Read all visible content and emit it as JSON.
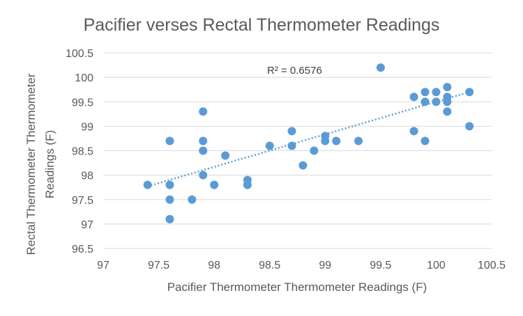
{
  "chart_data": {
    "type": "scatter",
    "title": "Pacifier verses Rectal Thermometer Readings",
    "xlabel": "Pacifier Thermometer Thermometer Readings (F)",
    "ylabel": "Rectal Thermometer Thermometer Readings (F)",
    "xlim": [
      97,
      100.5
    ],
    "ylim": [
      96.5,
      100.5
    ],
    "xticks": [
      "97",
      "97.5",
      "98",
      "98.5",
      "99",
      "99.5",
      "100",
      "100.5"
    ],
    "yticks": [
      "96.5",
      "97",
      "97.5",
      "98",
      "98.5",
      "99",
      "99.5",
      "100",
      "100.5"
    ],
    "grid": "horizontal",
    "annotation": "R² = 0.6576",
    "trendline": {
      "type": "linear",
      "x_start": 97.4,
      "y_start": 97.77,
      "x_end": 100.3,
      "y_end": 99.7
    },
    "series": [
      {
        "color": "#5b9bd5",
        "points": [
          {
            "x": 97.4,
            "y": 97.8
          },
          {
            "x": 97.6,
            "y": 98.7
          },
          {
            "x": 97.6,
            "y": 97.8
          },
          {
            "x": 97.6,
            "y": 97.5
          },
          {
            "x": 97.6,
            "y": 97.1
          },
          {
            "x": 97.8,
            "y": 97.5
          },
          {
            "x": 97.9,
            "y": 99.3
          },
          {
            "x": 97.9,
            "y": 98.7
          },
          {
            "x": 97.9,
            "y": 98.5
          },
          {
            "x": 97.9,
            "y": 98.0
          },
          {
            "x": 98.0,
            "y": 97.8
          },
          {
            "x": 98.1,
            "y": 98.4
          },
          {
            "x": 98.3,
            "y": 97.9
          },
          {
            "x": 98.3,
            "y": 97.8
          },
          {
            "x": 98.5,
            "y": 98.6
          },
          {
            "x": 98.7,
            "y": 98.9
          },
          {
            "x": 98.7,
            "y": 98.6
          },
          {
            "x": 98.8,
            "y": 98.2
          },
          {
            "x": 98.9,
            "y": 98.5
          },
          {
            "x": 99.0,
            "y": 98.8
          },
          {
            "x": 99.0,
            "y": 98.7
          },
          {
            "x": 99.1,
            "y": 98.7
          },
          {
            "x": 99.3,
            "y": 98.7
          },
          {
            "x": 99.5,
            "y": 100.2
          },
          {
            "x": 99.8,
            "y": 99.6
          },
          {
            "x": 99.8,
            "y": 98.9
          },
          {
            "x": 99.9,
            "y": 99.7
          },
          {
            "x": 99.9,
            "y": 99.5
          },
          {
            "x": 99.9,
            "y": 98.7
          },
          {
            "x": 100.0,
            "y": 99.7
          },
          {
            "x": 100.0,
            "y": 99.5
          },
          {
            "x": 100.1,
            "y": 99.8
          },
          {
            "x": 100.1,
            "y": 99.6
          },
          {
            "x": 100.1,
            "y": 99.5
          },
          {
            "x": 100.1,
            "y": 99.3
          },
          {
            "x": 100.3,
            "y": 99.7
          },
          {
            "x": 100.3,
            "y": 99.0
          }
        ]
      }
    ]
  }
}
